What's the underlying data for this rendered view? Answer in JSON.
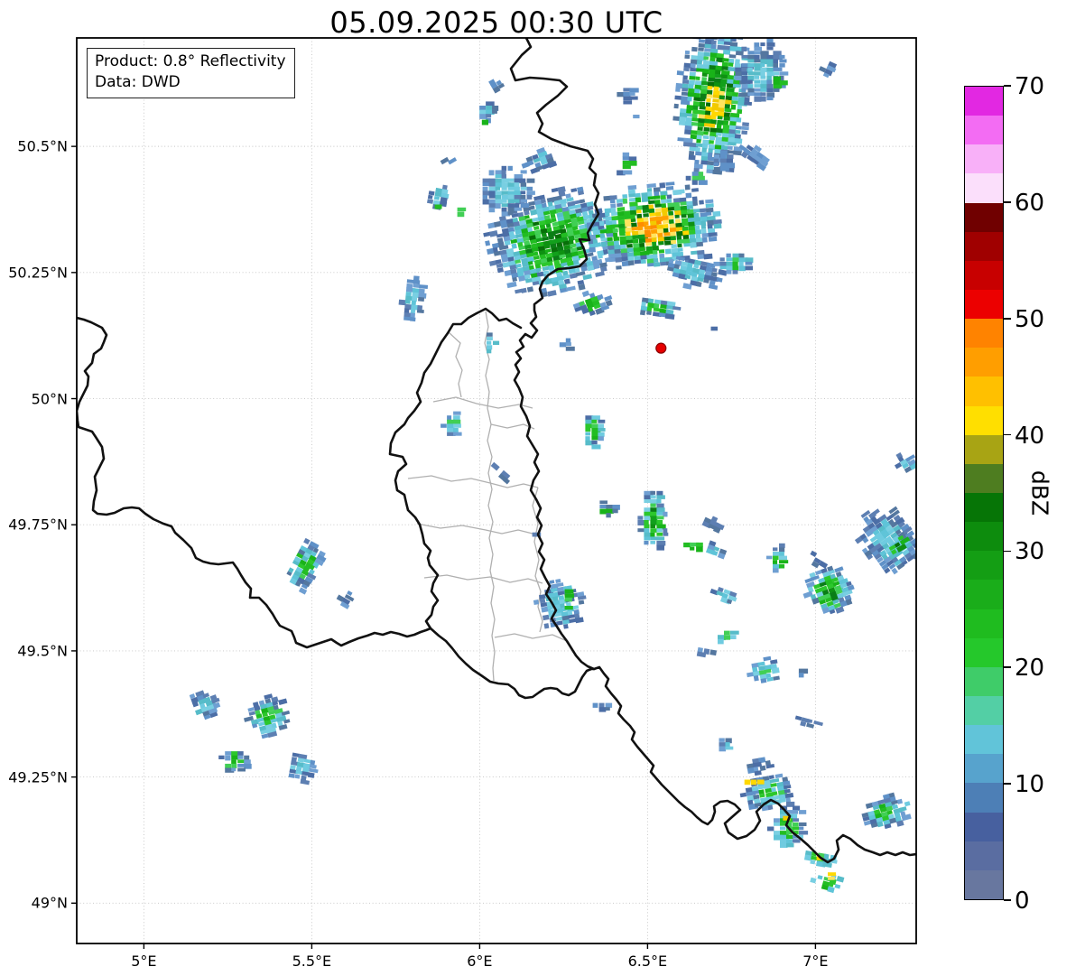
{
  "title": "05.09.2025 00:30 UTC",
  "annotation": {
    "line1": "Product: 0.8° Reflectivity",
    "line2": "Data: DWD"
  },
  "axes": {
    "x_ticks": [
      {
        "label": "5°E",
        "lon": 5.0
      },
      {
        "label": "5.5°E",
        "lon": 5.5
      },
      {
        "label": "6°E",
        "lon": 6.0
      },
      {
        "label": "6.5°E",
        "lon": 6.5
      },
      {
        "label": "7°E",
        "lon": 7.0
      }
    ],
    "y_ticks": [
      {
        "label": "50.5°N",
        "lat": 50.5
      },
      {
        "label": "50.25°N",
        "lat": 50.25
      },
      {
        "label": "50°N",
        "lat": 50.0
      },
      {
        "label": "49.75°N",
        "lat": 49.75
      },
      {
        "label": "49.5°N",
        "lat": 49.5
      },
      {
        "label": "49.25°N",
        "lat": 49.25
      },
      {
        "label": "49°N",
        "lat": 49.0
      }
    ],
    "lon_range": [
      4.8,
      7.3
    ],
    "lat_range": [
      48.92,
      50.715
    ],
    "grid_color": "#c3c3c3",
    "border_color": "#111111",
    "canton_border_color": "#b0b0b0"
  },
  "colorbar": {
    "label": "dBZ",
    "min": 0,
    "max": 70,
    "band_step": 2.5,
    "ticks": [
      0,
      10,
      20,
      30,
      40,
      50,
      60,
      70
    ],
    "colors_bottom_to_top": [
      "#68779f",
      "#5a6da1",
      "#47609f",
      "#4d7fb6",
      "#57a3cd",
      "#61c4d9",
      "#53cfa5",
      "#3fcc69",
      "#25c82b",
      "#1fbc1f",
      "#1aad1a",
      "#149e14",
      "#0d8c0d",
      "#067506",
      "#4e7d20",
      "#a8a414",
      "#ffdf00",
      "#ffc000",
      "#ff9e00",
      "#ff8300",
      "#ec0000",
      "#c80000",
      "#a00000",
      "#700000",
      "#fbdffb",
      "#f8b0f8",
      "#f36cf3",
      "#e228e2"
    ]
  },
  "marker": {
    "name": "radar-site",
    "lon": 6.54,
    "lat": 50.1,
    "color": "#e60000",
    "edge": "#8b0000"
  },
  "chart_data": {
    "type": "heatmap",
    "units": "dBZ",
    "layer_dbz": {
      "b": "0-12.5",
      "c": "12.5-17.5",
      "g": "17.5-30",
      "d": "30-37.5",
      "y": "40-45",
      "o": "45-50"
    },
    "echoes": [
      {
        "lon": 6.7,
        "lat": 50.59,
        "rlon": 0.11,
        "rlat": 0.14,
        "rot": 5,
        "layers": [
          "b",
          "c",
          "g",
          "d",
          "y"
        ]
      },
      {
        "lon": 6.84,
        "lat": 50.65,
        "rlon": 0.07,
        "rlat": 0.06,
        "rot": 0,
        "layers": [
          "b",
          "c"
        ]
      },
      {
        "lon": 6.89,
        "lat": 50.63,
        "rlon": 0.025,
        "rlat": 0.013,
        "rot": 0,
        "layers": [
          "g"
        ]
      },
      {
        "lon": 7.04,
        "lat": 50.65,
        "rlon": 0.019,
        "rlat": 0.022,
        "rot": 25,
        "layers": [
          "b"
        ]
      },
      {
        "lon": 6.82,
        "lat": 50.48,
        "rlon": 0.046,
        "rlat": 0.016,
        "rot": 35,
        "layers": [
          "b"
        ]
      },
      {
        "lon": 6.72,
        "lat": 50.47,
        "rlon": 0.032,
        "rlat": 0.018,
        "rot": 0,
        "layers": [
          "b"
        ]
      },
      {
        "lon": 6.65,
        "lat": 50.44,
        "rlon": 0.027,
        "rlat": 0.014,
        "rot": 0,
        "layers": [
          "b",
          "g"
        ]
      },
      {
        "lon": 6.22,
        "lat": 50.31,
        "rlon": 0.19,
        "rlat": 0.1,
        "rot": -12,
        "layers": [
          "b",
          "c",
          "g",
          "d"
        ]
      },
      {
        "lon": 6.08,
        "lat": 50.41,
        "rlon": 0.081,
        "rlat": 0.047,
        "rot": 0,
        "layers": [
          "b",
          "c"
        ]
      },
      {
        "lon": 6.18,
        "lat": 50.47,
        "rlon": 0.046,
        "rlat": 0.02,
        "rot": -20,
        "layers": [
          "b",
          "c"
        ]
      },
      {
        "lon": 6.52,
        "lat": 50.34,
        "rlon": 0.19,
        "rlat": 0.082,
        "rot": -5,
        "layers": [
          "b",
          "c",
          "g",
          "d",
          "y",
          "o"
        ]
      },
      {
        "lon": 6.64,
        "lat": 50.25,
        "rlon": 0.091,
        "rlat": 0.029,
        "rot": 12,
        "layers": [
          "b",
          "c"
        ]
      },
      {
        "lon": 6.76,
        "lat": 50.27,
        "rlon": 0.054,
        "rlat": 0.022,
        "rot": 0,
        "layers": [
          "b",
          "c",
          "g"
        ]
      },
      {
        "lon": 6.34,
        "lat": 50.19,
        "rlon": 0.051,
        "rlat": 0.023,
        "rot": -20,
        "layers": [
          "b",
          "g"
        ]
      },
      {
        "lon": 6.53,
        "lat": 50.18,
        "rlon": 0.059,
        "rlat": 0.02,
        "rot": 8,
        "layers": [
          "b",
          "c",
          "g"
        ]
      },
      {
        "lon": 6.05,
        "lat": 50.62,
        "rlon": 0.024,
        "rlat": 0.011,
        "rot": -30,
        "layers": [
          "b"
        ]
      },
      {
        "lon": 6.02,
        "lat": 50.57,
        "rlon": 0.03,
        "rlat": 0.023,
        "rot": 0,
        "layers": [
          "b",
          "c"
        ]
      },
      {
        "lon": 6.01,
        "lat": 50.55,
        "rlon": 0.013,
        "rlat": 0.007,
        "rot": 0,
        "layers": [
          "g"
        ]
      },
      {
        "lon": 6.44,
        "lat": 50.6,
        "rlon": 0.022,
        "rlat": 0.02,
        "rot": 0,
        "layers": [
          "b"
        ]
      },
      {
        "lon": 6.46,
        "lat": 50.56,
        "rlon": 0.013,
        "rlat": 0.007,
        "rot": 0,
        "layers": [
          "b"
        ]
      },
      {
        "lon": 5.9,
        "lat": 50.47,
        "rlon": 0.024,
        "rlat": 0.011,
        "rot": -30,
        "layers": [
          "b"
        ]
      },
      {
        "lon": 5.88,
        "lat": 50.4,
        "rlon": 0.024,
        "rlat": 0.029,
        "rot": 10,
        "layers": [
          "b",
          "c"
        ]
      },
      {
        "lon": 5.87,
        "lat": 50.38,
        "rlon": 0.013,
        "rlat": 0.009,
        "rot": 0,
        "layers": [
          "g"
        ]
      },
      {
        "lon": 5.94,
        "lat": 50.37,
        "rlon": 0.016,
        "rlat": 0.013,
        "rot": 0,
        "layers": [
          "c",
          "g"
        ]
      },
      {
        "lon": 6.44,
        "lat": 50.47,
        "rlon": 0.024,
        "rlat": 0.014,
        "rot": 0,
        "layers": [
          "b",
          "g"
        ]
      },
      {
        "lon": 6.43,
        "lat": 50.45,
        "rlon": 0.013,
        "rlat": 0.007,
        "rot": 0,
        "layers": [
          "b"
        ]
      },
      {
        "lon": 5.8,
        "lat": 50.2,
        "rlon": 0.03,
        "rlat": 0.048,
        "rot": 5,
        "layers": [
          "b",
          "c"
        ]
      },
      {
        "lon": 6.03,
        "lat": 50.11,
        "rlon": 0.019,
        "rlat": 0.025,
        "rot": 0,
        "layers": [
          "b",
          "c"
        ]
      },
      {
        "lon": 6.26,
        "lat": 50.11,
        "rlon": 0.013,
        "rlat": 0.014,
        "rot": 0,
        "layers": [
          "b"
        ]
      },
      {
        "lon": 6.69,
        "lat": 50.14,
        "rlon": 0.011,
        "rlat": 0.007,
        "rot": 0,
        "layers": [
          "b"
        ]
      },
      {
        "lon": 5.92,
        "lat": 49.95,
        "rlon": 0.027,
        "rlat": 0.029,
        "rot": 0,
        "layers": [
          "b",
          "c",
          "g"
        ]
      },
      {
        "lon": 6.34,
        "lat": 49.94,
        "rlon": 0.035,
        "rlat": 0.039,
        "rot": 0,
        "layers": [
          "b",
          "c",
          "g"
        ]
      },
      {
        "lon": 6.07,
        "lat": 49.85,
        "rlon": 0.035,
        "rlat": 0.011,
        "rot": 40,
        "layers": [
          "b"
        ]
      },
      {
        "lon": 6.16,
        "lat": 49.73,
        "rlon": 0.013,
        "rlat": 0.009,
        "rot": 0,
        "layers": [
          "b"
        ]
      },
      {
        "lon": 5.48,
        "lat": 49.67,
        "rlon": 0.046,
        "rlat": 0.052,
        "rot": 28,
        "layers": [
          "b",
          "c",
          "g"
        ]
      },
      {
        "lon": 5.6,
        "lat": 49.6,
        "rlon": 0.016,
        "rlat": 0.016,
        "rot": 30,
        "layers": [
          "b"
        ]
      },
      {
        "lon": 6.24,
        "lat": 49.59,
        "rlon": 0.067,
        "rlat": 0.048,
        "rot": -10,
        "layers": [
          "b",
          "c"
        ]
      },
      {
        "lon": 6.26,
        "lat": 49.6,
        "rlon": 0.016,
        "rlat": 0.018,
        "rot": 0,
        "layers": [
          "g"
        ]
      },
      {
        "lon": 6.52,
        "lat": 49.76,
        "rlon": 0.04,
        "rlat": 0.061,
        "rot": 0,
        "layers": [
          "b",
          "c",
          "g",
          "d"
        ]
      },
      {
        "lon": 6.38,
        "lat": 49.78,
        "rlon": 0.032,
        "rlat": 0.014,
        "rot": 0,
        "layers": [
          "b",
          "g"
        ]
      },
      {
        "lon": 6.69,
        "lat": 49.75,
        "rlon": 0.035,
        "rlat": 0.013,
        "rot": 25,
        "layers": [
          "b"
        ]
      },
      {
        "lon": 6.64,
        "lat": 49.71,
        "rlon": 0.024,
        "rlat": 0.009,
        "rot": 0,
        "layers": [
          "g"
        ]
      },
      {
        "lon": 6.7,
        "lat": 49.7,
        "rlon": 0.032,
        "rlat": 0.011,
        "rot": 20,
        "layers": [
          "b",
          "c"
        ]
      },
      {
        "lon": 6.89,
        "lat": 49.68,
        "rlon": 0.027,
        "rlat": 0.029,
        "rot": 0,
        "layers": [
          "b",
          "c",
          "g"
        ]
      },
      {
        "lon": 7.0,
        "lat": 49.68,
        "rlon": 0.032,
        "rlat": 0.009,
        "rot": 30,
        "layers": [
          "b"
        ]
      },
      {
        "lon": 7.04,
        "lat": 49.62,
        "rlon": 0.067,
        "rlat": 0.048,
        "rot": -20,
        "layers": [
          "b",
          "c",
          "g",
          "d"
        ]
      },
      {
        "lon": 7.22,
        "lat": 49.72,
        "rlon": 0.075,
        "rlat": 0.068,
        "rot": -35,
        "layers": [
          "b",
          "c"
        ]
      },
      {
        "lon": 7.25,
        "lat": 49.71,
        "rlon": 0.022,
        "rlat": 0.018,
        "rot": -30,
        "layers": [
          "g",
          "d"
        ]
      },
      {
        "lon": 7.27,
        "lat": 49.87,
        "rlon": 0.022,
        "rlat": 0.022,
        "rot": -30,
        "layers": [
          "b",
          "c"
        ]
      },
      {
        "lon": 6.73,
        "lat": 49.61,
        "rlon": 0.035,
        "rlat": 0.016,
        "rot": 20,
        "layers": [
          "b",
          "c"
        ]
      },
      {
        "lon": 6.74,
        "lat": 49.53,
        "rlon": 0.022,
        "rlat": 0.014,
        "rot": 0,
        "layers": [
          "c",
          "g"
        ]
      },
      {
        "lon": 6.67,
        "lat": 49.5,
        "rlon": 0.03,
        "rlat": 0.009,
        "rot": 10,
        "layers": [
          "b"
        ]
      },
      {
        "lon": 6.37,
        "lat": 49.39,
        "rlon": 0.024,
        "rlat": 0.011,
        "rot": 0,
        "layers": [
          "b"
        ]
      },
      {
        "lon": 6.85,
        "lat": 49.46,
        "rlon": 0.046,
        "rlat": 0.023,
        "rot": -10,
        "layers": [
          "b",
          "c",
          "g"
        ]
      },
      {
        "lon": 6.96,
        "lat": 49.46,
        "rlon": 0.019,
        "rlat": 0.009,
        "rot": 0,
        "layers": [
          "b"
        ]
      },
      {
        "lon": 6.98,
        "lat": 49.36,
        "rlon": 0.032,
        "rlat": 0.009,
        "rot": 15,
        "layers": [
          "b"
        ]
      },
      {
        "lon": 5.18,
        "lat": 49.39,
        "rlon": 0.04,
        "rlat": 0.027,
        "rot": -20,
        "layers": [
          "b",
          "c"
        ]
      },
      {
        "lon": 5.37,
        "lat": 49.37,
        "rlon": 0.062,
        "rlat": 0.038,
        "rot": -15,
        "layers": [
          "b",
          "c",
          "g"
        ]
      },
      {
        "lon": 5.27,
        "lat": 49.28,
        "rlon": 0.038,
        "rlat": 0.025,
        "rot": 0,
        "layers": [
          "b",
          "g"
        ]
      },
      {
        "lon": 5.47,
        "lat": 49.27,
        "rlon": 0.043,
        "rlat": 0.029,
        "rot": 10,
        "layers": [
          "b",
          "c"
        ]
      },
      {
        "lon": 6.86,
        "lat": 49.22,
        "rlon": 0.075,
        "rlat": 0.036,
        "rot": -10,
        "layers": [
          "b",
          "c",
          "g"
        ]
      },
      {
        "lon": 6.82,
        "lat": 49.24,
        "rlon": 0.022,
        "rlat": 0.009,
        "rot": 0,
        "layers": [
          "y"
        ]
      },
      {
        "lon": 6.92,
        "lat": 49.15,
        "rlon": 0.054,
        "rlat": 0.047,
        "rot": 0,
        "layers": [
          "b",
          "c",
          "g"
        ]
      },
      {
        "lon": 6.91,
        "lat": 49.17,
        "rlon": 0.016,
        "rlat": 0.007,
        "rot": 0,
        "layers": [
          "y"
        ]
      },
      {
        "lon": 7.01,
        "lat": 49.09,
        "rlon": 0.051,
        "rlat": 0.014,
        "rot": 10,
        "layers": [
          "c",
          "g"
        ]
      },
      {
        "lon": 7.01,
        "lat": 49.09,
        "rlon": 0.016,
        "rlat": 0.007,
        "rot": 0,
        "layers": [
          "y"
        ]
      },
      {
        "lon": 7.04,
        "lat": 49.04,
        "rlon": 0.046,
        "rlat": 0.014,
        "rot": 15,
        "layers": [
          "c",
          "g"
        ]
      },
      {
        "lon": 7.04,
        "lat": 49.05,
        "rlon": 0.013,
        "rlat": 0.007,
        "rot": 0,
        "layers": [
          "y"
        ]
      },
      {
        "lon": 7.21,
        "lat": 49.18,
        "rlon": 0.081,
        "rlat": 0.03,
        "rot": -15,
        "layers": [
          "b",
          "c",
          "g"
        ]
      },
      {
        "lon": 6.73,
        "lat": 49.31,
        "rlon": 0.027,
        "rlat": 0.013,
        "rot": 0,
        "layers": [
          "b",
          "c"
        ]
      },
      {
        "lon": 6.83,
        "lat": 49.27,
        "rlon": 0.043,
        "rlat": 0.013,
        "rot": -10,
        "layers": [
          "b"
        ]
      }
    ]
  }
}
